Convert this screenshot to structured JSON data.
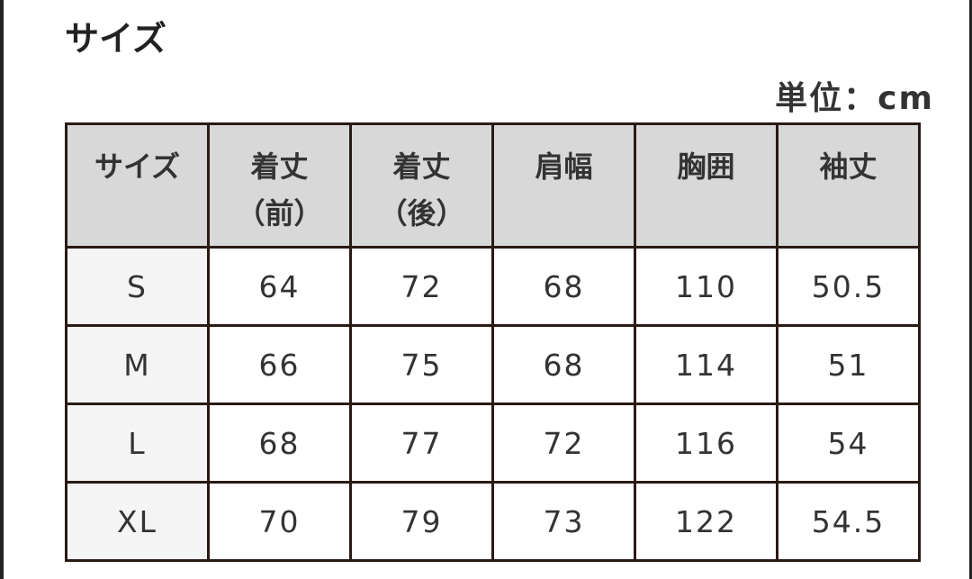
{
  "title": "サイズ",
  "unit": "単位：cm",
  "headers": [
    [
      "サイズ",
      ""
    ],
    [
      "着丈",
      "（前）"
    ],
    [
      "着丈",
      "（後）"
    ],
    [
      "肩幅",
      ""
    ],
    [
      "胸囲",
      ""
    ],
    [
      "袖丈",
      ""
    ]
  ],
  "rows": [
    [
      "S",
      "64",
      "72",
      "68",
      "110",
      "50.5"
    ],
    [
      "M",
      "66",
      "75",
      "68",
      "114",
      "51"
    ],
    [
      "L",
      "68",
      "77",
      "72",
      "116",
      "54"
    ],
    [
      "XL",
      "70",
      "79",
      "73",
      "122",
      "54.5"
    ]
  ]
}
